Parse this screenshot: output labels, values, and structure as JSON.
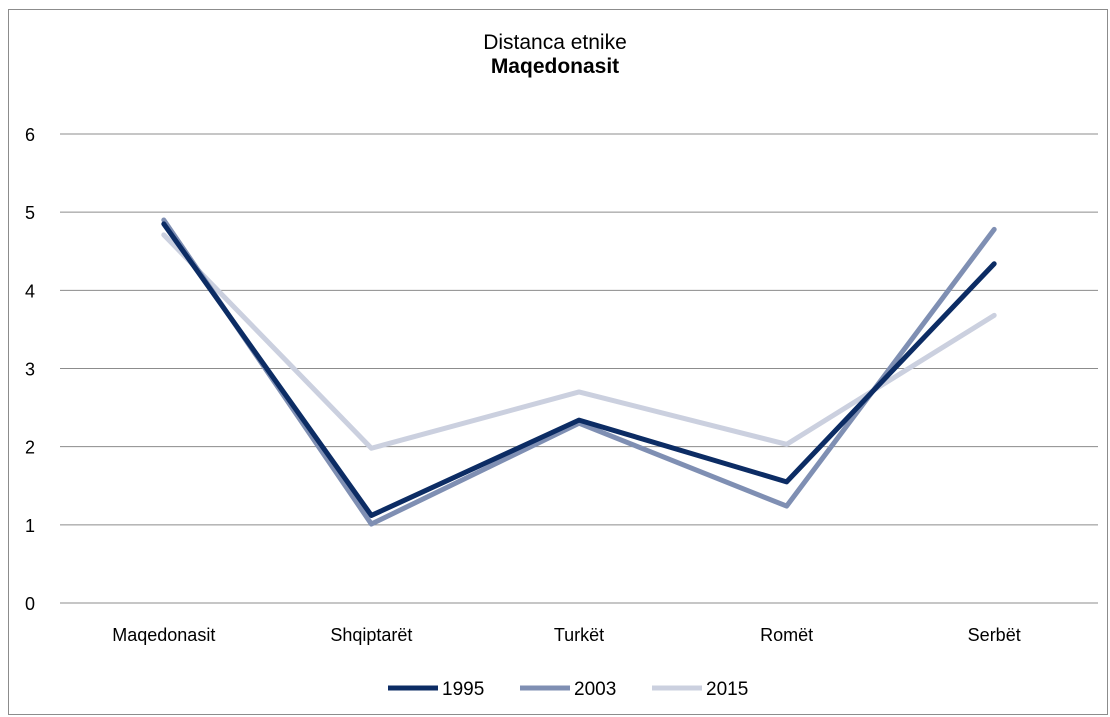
{
  "chart_data": {
    "type": "line",
    "title": "Distanca etnike",
    "subtitle": "Maqedonasit",
    "categories": [
      "Maqedonasit",
      "Shqiptarët",
      "Turkët",
      "Romët",
      "Serbët"
    ],
    "ylim": [
      0,
      6
    ],
    "yticks": [
      "0",
      "1",
      "2",
      "3",
      "4",
      "5",
      "6"
    ],
    "grid": true,
    "legend_position": "bottom",
    "series": [
      {
        "name": "1995",
        "values": [
          4.85,
          1.12,
          2.34,
          1.55,
          4.34
        ],
        "color": "#0c2c64"
      },
      {
        "name": "2003",
        "values": [
          4.9,
          1.01,
          2.3,
          1.24,
          4.78
        ],
        "color": "#7f8fb3"
      },
      {
        "name": "2015",
        "values": [
          4.71,
          1.98,
          2.7,
          2.03,
          3.68
        ],
        "color": "#cbd0df"
      }
    ]
  }
}
